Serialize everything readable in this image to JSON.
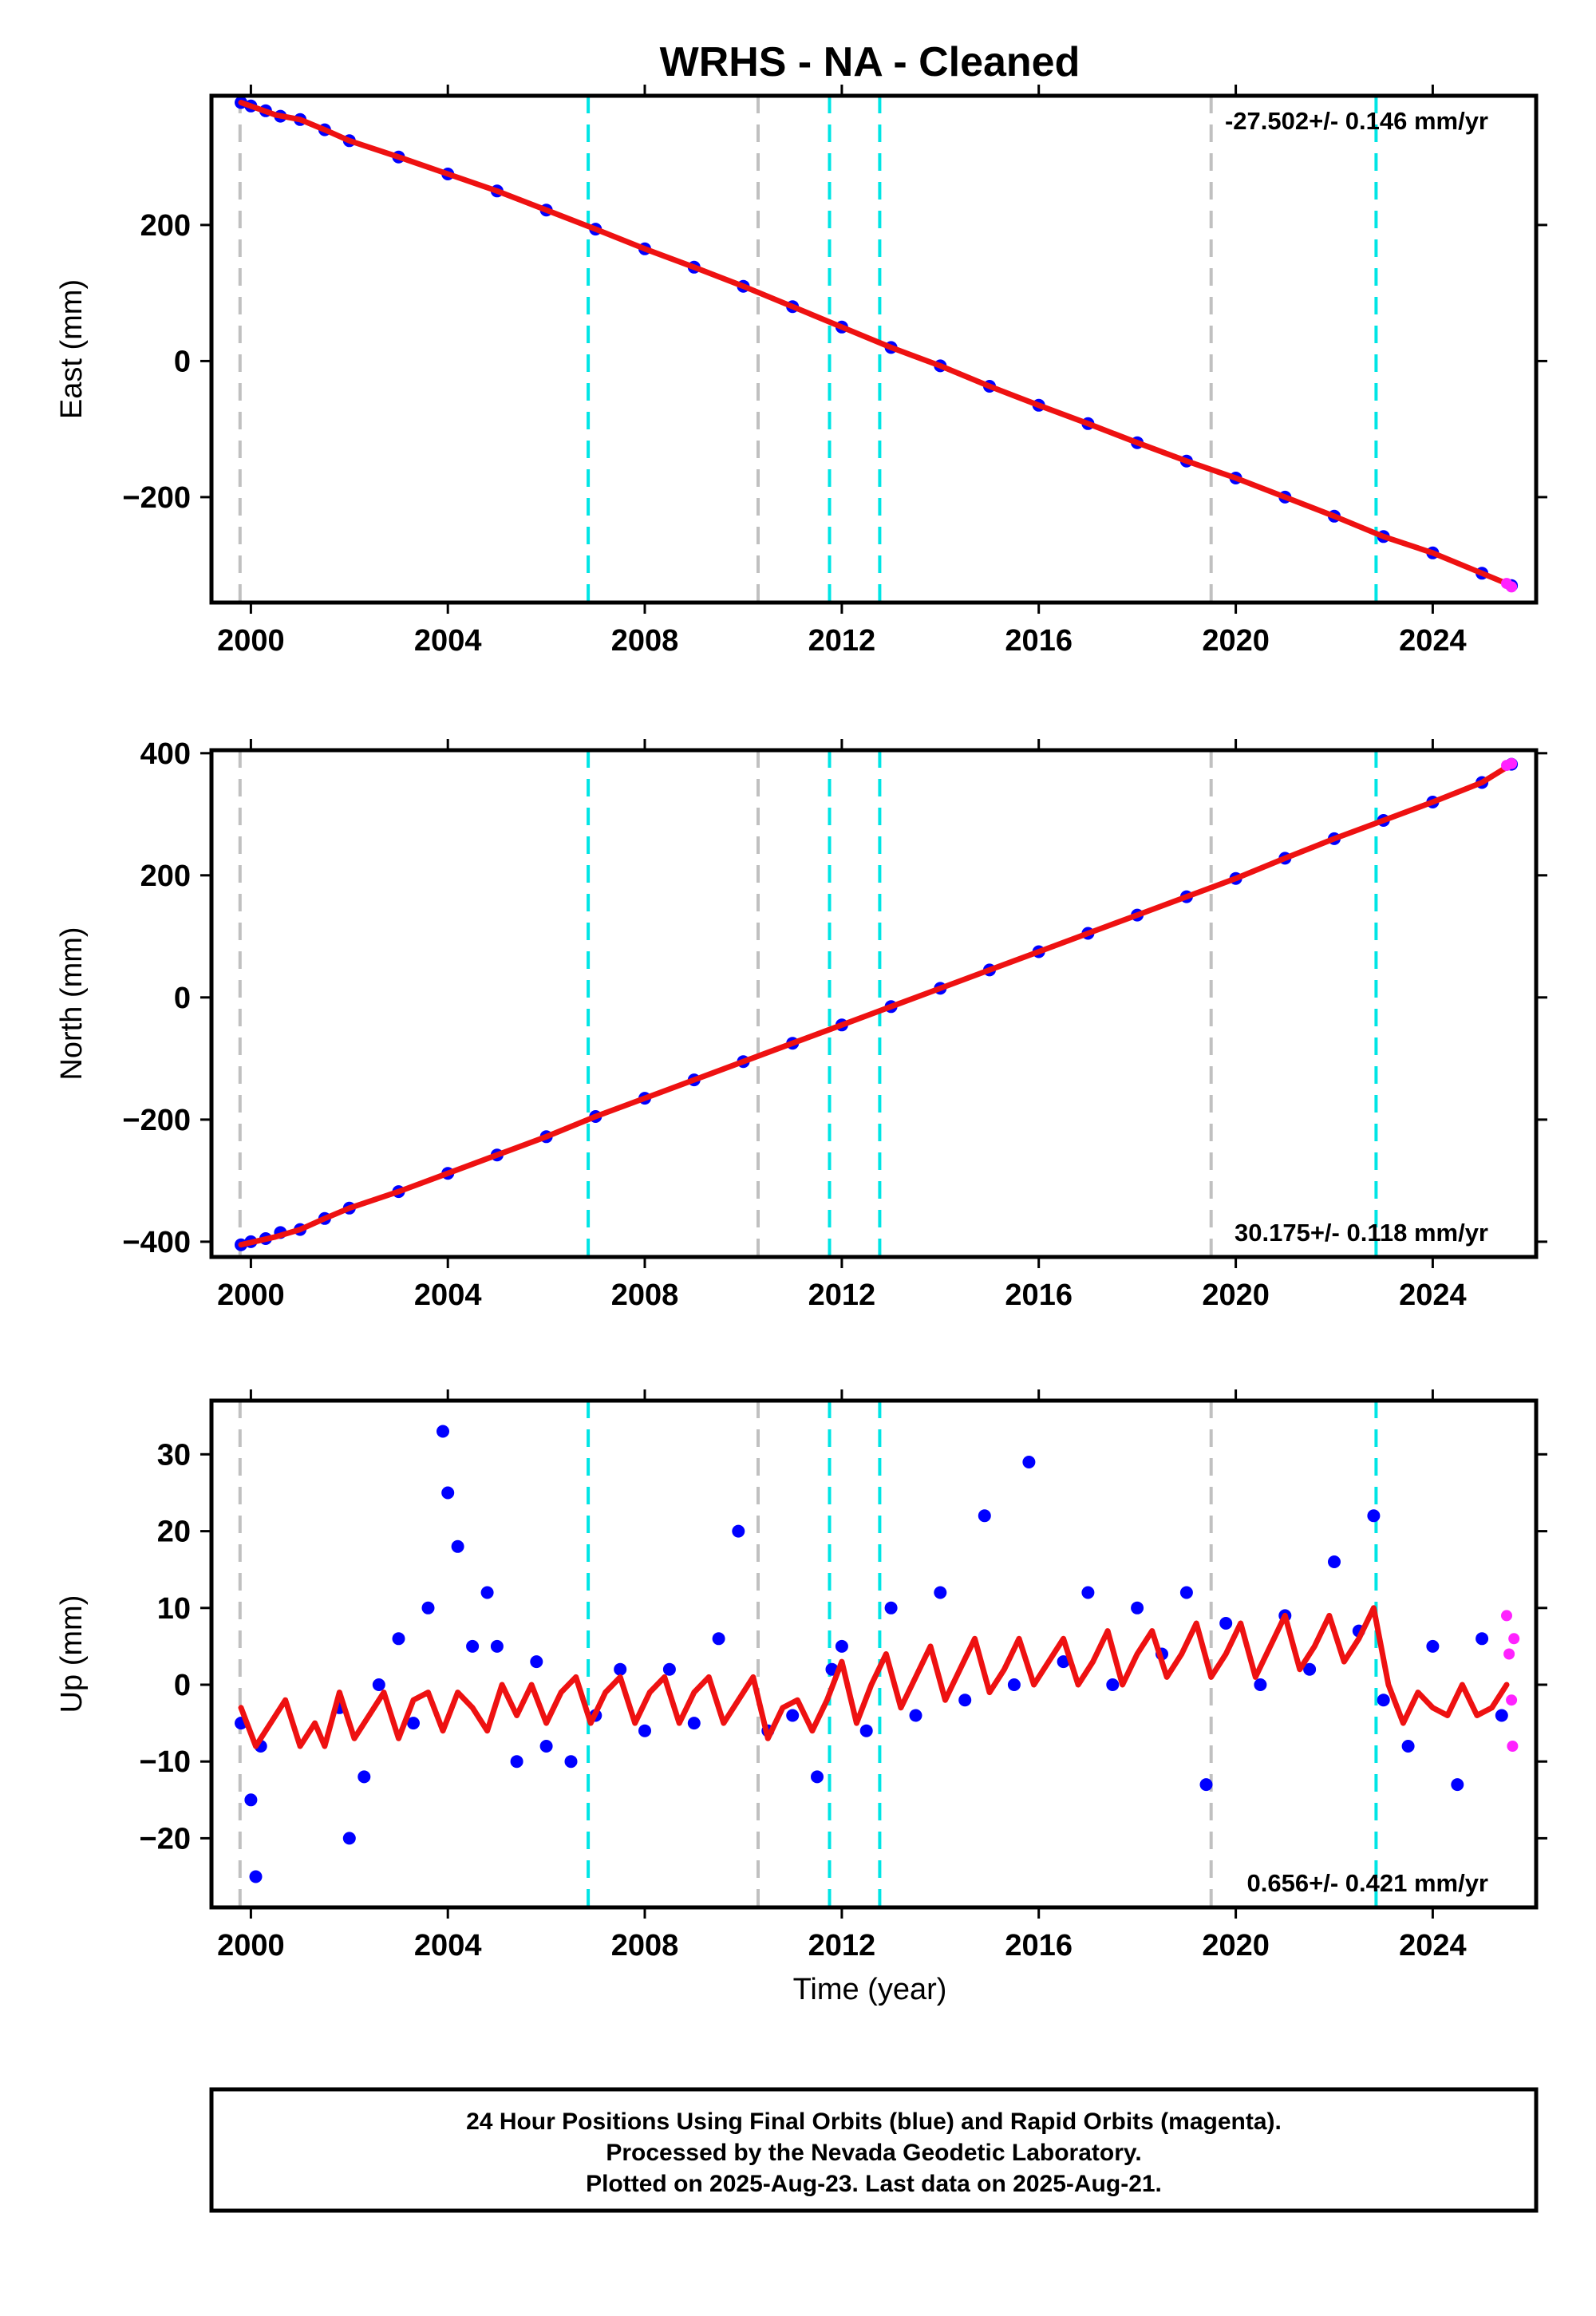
{
  "title": "WRHS  - NA - Cleaned",
  "xlabel": "Time (year)",
  "footer": [
    "24 Hour Positions Using Final Orbits (blue) and Rapid Orbits (magenta).",
    "Processed by the Nevada Geodetic Laboratory.",
    "Plotted on 2025-Aug-23. Last data on 2025-Aug-21."
  ],
  "colors": {
    "final": "#0000ff",
    "rapid": "#ff22ff",
    "model": "#ee1111",
    "antenna_change": "#00e5e5",
    "equipment_change": "#c0c0c0"
  },
  "chart_data": [
    {
      "type": "scatter",
      "ylabel": "East (mm)",
      "rate_label": "-27.502+/- 0.146 mm/yr",
      "rate_position": "top-right",
      "xlim": [
        1999.2,
        2026.1
      ],
      "ylim": [
        -355,
        390
      ],
      "xticks": [
        2000,
        2004,
        2008,
        2012,
        2016,
        2020,
        2024
      ],
      "yticks": [
        -200,
        0,
        200
      ],
      "series": [
        {
          "type": "scatter",
          "x": [
            1999.8,
            2000.0,
            2000.3,
            2000.6,
            2001.0,
            2001.5,
            2002.0,
            2003.0,
            2004.0,
            2005.0,
            2006.0,
            2007.0,
            2008.0,
            2009.0,
            2010.0,
            2011.0,
            2012.0,
            2013.0,
            2014.0,
            2015.0,
            2016.0,
            2017.0,
            2018.0,
            2019.0,
            2020.0,
            2021.0,
            2022.0,
            2023.0,
            2024.0,
            2025.0,
            2025.6
          ],
          "y": [
            380,
            375,
            368,
            360,
            355,
            340,
            324,
            300,
            275,
            250,
            222,
            194,
            165,
            138,
            110,
            80,
            50,
            20,
            -7,
            -37,
            -65,
            -92,
            -120,
            -147,
            -172,
            -200,
            -228,
            -258,
            -282,
            -312,
            -330
          ]
        },
        {
          "type": "line",
          "x": [
            1999.8,
            2000.5,
            2001.0,
            2001.5,
            2002.0,
            2003.0,
            2004.0,
            2005.0,
            2006.0,
            2007.0,
            2008.0,
            2009.0,
            2010.0,
            2011.0,
            2012.0,
            2013.0,
            2014.0,
            2015.0,
            2016.0,
            2017.0,
            2018.0,
            2019.0,
            2020.0,
            2021.0,
            2022.0,
            2023.0,
            2024.0,
            2025.0,
            2025.6
          ],
          "y": [
            380,
            362,
            355,
            340,
            324,
            300,
            275,
            250,
            222,
            194,
            165,
            138,
            110,
            80,
            50,
            20,
            -7,
            -37,
            -65,
            -92,
            -120,
            -147,
            -172,
            -200,
            -228,
            -258,
            -282,
            -312,
            -330
          ]
        },
        {
          "type": "scatter",
          "x": [
            2025.5,
            2025.6
          ],
          "y": [
            -327,
            -332
          ]
        }
      ]
    },
    {
      "type": "scatter",
      "ylabel": "North (mm)",
      "rate_label": "30.175+/- 0.118 mm/yr",
      "rate_position": "bottom-right",
      "xlim": [
        1999.2,
        2026.1
      ],
      "ylim": [
        -425,
        405
      ],
      "xticks": [
        2000,
        2004,
        2008,
        2012,
        2016,
        2020,
        2024
      ],
      "yticks": [
        -400,
        -200,
        0,
        200,
        400
      ],
      "series": [
        {
          "type": "scatter",
          "x": [
            1999.8,
            2000.0,
            2000.3,
            2000.6,
            2001.0,
            2001.5,
            2002.0,
            2003.0,
            2004.0,
            2005.0,
            2006.0,
            2007.0,
            2008.0,
            2009.0,
            2010.0,
            2011.0,
            2012.0,
            2013.0,
            2014.0,
            2015.0,
            2016.0,
            2017.0,
            2018.0,
            2019.0,
            2020.0,
            2021.0,
            2022.0,
            2023.0,
            2024.0,
            2025.0,
            2025.6
          ],
          "y": [
            -405,
            -400,
            -395,
            -385,
            -380,
            -362,
            -345,
            -318,
            -288,
            -258,
            -228,
            -195,
            -165,
            -135,
            -105,
            -75,
            -45,
            -15,
            15,
            45,
            75,
            105,
            135,
            165,
            195,
            228,
            260,
            290,
            320,
            352,
            382
          ]
        },
        {
          "type": "line",
          "x": [
            1999.8,
            2000.5,
            2001.0,
            2001.5,
            2002.0,
            2003.0,
            2004.0,
            2005.0,
            2006.0,
            2007.0,
            2008.0,
            2009.0,
            2010.0,
            2011.0,
            2012.0,
            2013.0,
            2014.0,
            2015.0,
            2016.0,
            2017.0,
            2018.0,
            2019.0,
            2020.0,
            2021.0,
            2022.0,
            2023.0,
            2024.0,
            2025.0,
            2025.6
          ],
          "y": [
            -405,
            -392,
            -380,
            -362,
            -345,
            -318,
            -288,
            -258,
            -228,
            -195,
            -165,
            -135,
            -105,
            -75,
            -45,
            -15,
            15,
            45,
            75,
            105,
            135,
            165,
            195,
            228,
            260,
            290,
            320,
            352,
            382
          ]
        },
        {
          "type": "scatter",
          "x": [
            2025.5,
            2025.6
          ],
          "y": [
            380,
            383
          ]
        }
      ]
    },
    {
      "type": "scatter",
      "ylabel": "Up (mm)",
      "rate_label": "0.656+/- 0.421 mm/yr",
      "rate_position": "bottom-right",
      "xlim": [
        1999.2,
        2026.1
      ],
      "ylim": [
        -29,
        37
      ],
      "xticks": [
        2000,
        2004,
        2008,
        2012,
        2016,
        2020,
        2024
      ],
      "yticks": [
        -20,
        -10,
        0,
        10,
        20,
        30
      ],
      "series": [
        {
          "type": "scatter",
          "x": [
            1999.8,
            2000.0,
            2000.1,
            2000.2,
            2001.8,
            2002.0,
            2002.3,
            2002.6,
            2003.0,
            2003.3,
            2003.6,
            2003.9,
            2004.0,
            2004.2,
            2004.5,
            2004.8,
            2005.0,
            2005.4,
            2005.8,
            2006.0,
            2006.5,
            2007.0,
            2007.5,
            2008.0,
            2008.5,
            2009.0,
            2009.5,
            2009.9,
            2010.5,
            2011.0,
            2011.5,
            2011.8,
            2012.0,
            2012.5,
            2013.0,
            2013.5,
            2014.0,
            2014.5,
            2014.9,
            2015.5,
            2015.8,
            2016.5,
            2017.0,
            2017.5,
            2018.0,
            2018.5,
            2019.0,
            2019.4,
            2019.8,
            2020.5,
            2021.0,
            2021.5,
            2022.0,
            2022.5,
            2022.8,
            2023.0,
            2023.5,
            2024.0,
            2024.5,
            2025.0,
            2025.4
          ],
          "y": [
            -5,
            -15,
            -25,
            -8,
            -3,
            -20,
            -12,
            0,
            6,
            -5,
            10,
            33,
            25,
            18,
            5,
            12,
            5,
            -10,
            3,
            -8,
            -10,
            -4,
            2,
            -6,
            2,
            -5,
            6,
            20,
            -6,
            -4,
            -12,
            2,
            5,
            -6,
            10,
            -4,
            12,
            -2,
            22,
            0,
            29,
            3,
            12,
            0,
            10,
            4,
            12,
            -13,
            8,
            0,
            9,
            2,
            16,
            7,
            22,
            -2,
            -8,
            5,
            -13,
            6,
            -4
          ]
        },
        {
          "type": "line",
          "x": [
            1999.8,
            2000.1,
            2000.4,
            2000.7,
            2001.0,
            2001.3,
            2001.5,
            2001.8,
            2002.1,
            2002.4,
            2002.7,
            2003.0,
            2003.3,
            2003.6,
            2003.9,
            2004.2,
            2004.5,
            2004.8,
            2005.1,
            2005.4,
            2005.7,
            2006.0,
            2006.3,
            2006.6,
            2006.9,
            2007.2,
            2007.5,
            2007.8,
            2008.1,
            2008.4,
            2008.7,
            2009.0,
            2009.3,
            2009.6,
            2009.9,
            2010.2,
            2010.5,
            2010.8,
            2011.1,
            2011.4,
            2011.7,
            2012.0,
            2012.3,
            2012.6,
            2012.9,
            2013.2,
            2013.5,
            2013.8,
            2014.1,
            2014.4,
            2014.7,
            2015.0,
            2015.3,
            2015.6,
            2015.9,
            2016.2,
            2016.5,
            2016.8,
            2017.1,
            2017.4,
            2017.7,
            2018.0,
            2018.3,
            2018.6,
            2018.9,
            2019.2,
            2019.5,
            2019.8,
            2020.1,
            2020.4,
            2020.7,
            2021.0,
            2021.3,
            2021.6,
            2021.9,
            2022.2,
            2022.5,
            2022.8,
            2023.1,
            2023.4,
            2023.7,
            2024.0,
            2024.3,
            2024.6,
            2024.9,
            2025.2,
            2025.5
          ],
          "y": [
            -3,
            -8,
            -5,
            -2,
            -8,
            -5,
            -8,
            -1,
            -7,
            -4,
            -1,
            -7,
            -2,
            -1,
            -6,
            -1,
            -3,
            -6,
            0,
            -4,
            0,
            -5,
            -1,
            1,
            -5,
            -1,
            1,
            -5,
            -1,
            1,
            -5,
            -1,
            1,
            -5,
            -2,
            1,
            -7,
            -3,
            -2,
            -6,
            -2,
            3,
            -5,
            0,
            4,
            -3,
            1,
            5,
            -2,
            2,
            6,
            -1,
            2,
            6,
            0,
            3,
            6,
            0,
            3,
            7,
            0,
            4,
            7,
            1,
            4,
            8,
            1,
            4,
            8,
            1,
            5,
            9,
            2,
            5,
            9,
            3,
            6,
            10,
            0,
            -5,
            -1,
            -3,
            -4,
            0,
            -4,
            -3,
            0
          ]
        },
        {
          "type": "scatter",
          "x": [
            2025.5,
            2025.55,
            2025.6,
            2025.62,
            2025.65
          ],
          "y": [
            9,
            4,
            -2,
            -8,
            6
          ]
        }
      ]
    }
  ],
  "equipment_changes": [
    {
      "year": 1999.78,
      "kind": "equipment_change"
    },
    {
      "year": 2006.85,
      "kind": "antenna_change"
    },
    {
      "year": 2010.3,
      "kind": "equipment_change"
    },
    {
      "year": 2011.75,
      "kind": "antenna_change"
    },
    {
      "year": 2012.77,
      "kind": "antenna_change"
    },
    {
      "year": 2019.5,
      "kind": "equipment_change"
    },
    {
      "year": 2022.85,
      "kind": "antenna_change"
    }
  ]
}
